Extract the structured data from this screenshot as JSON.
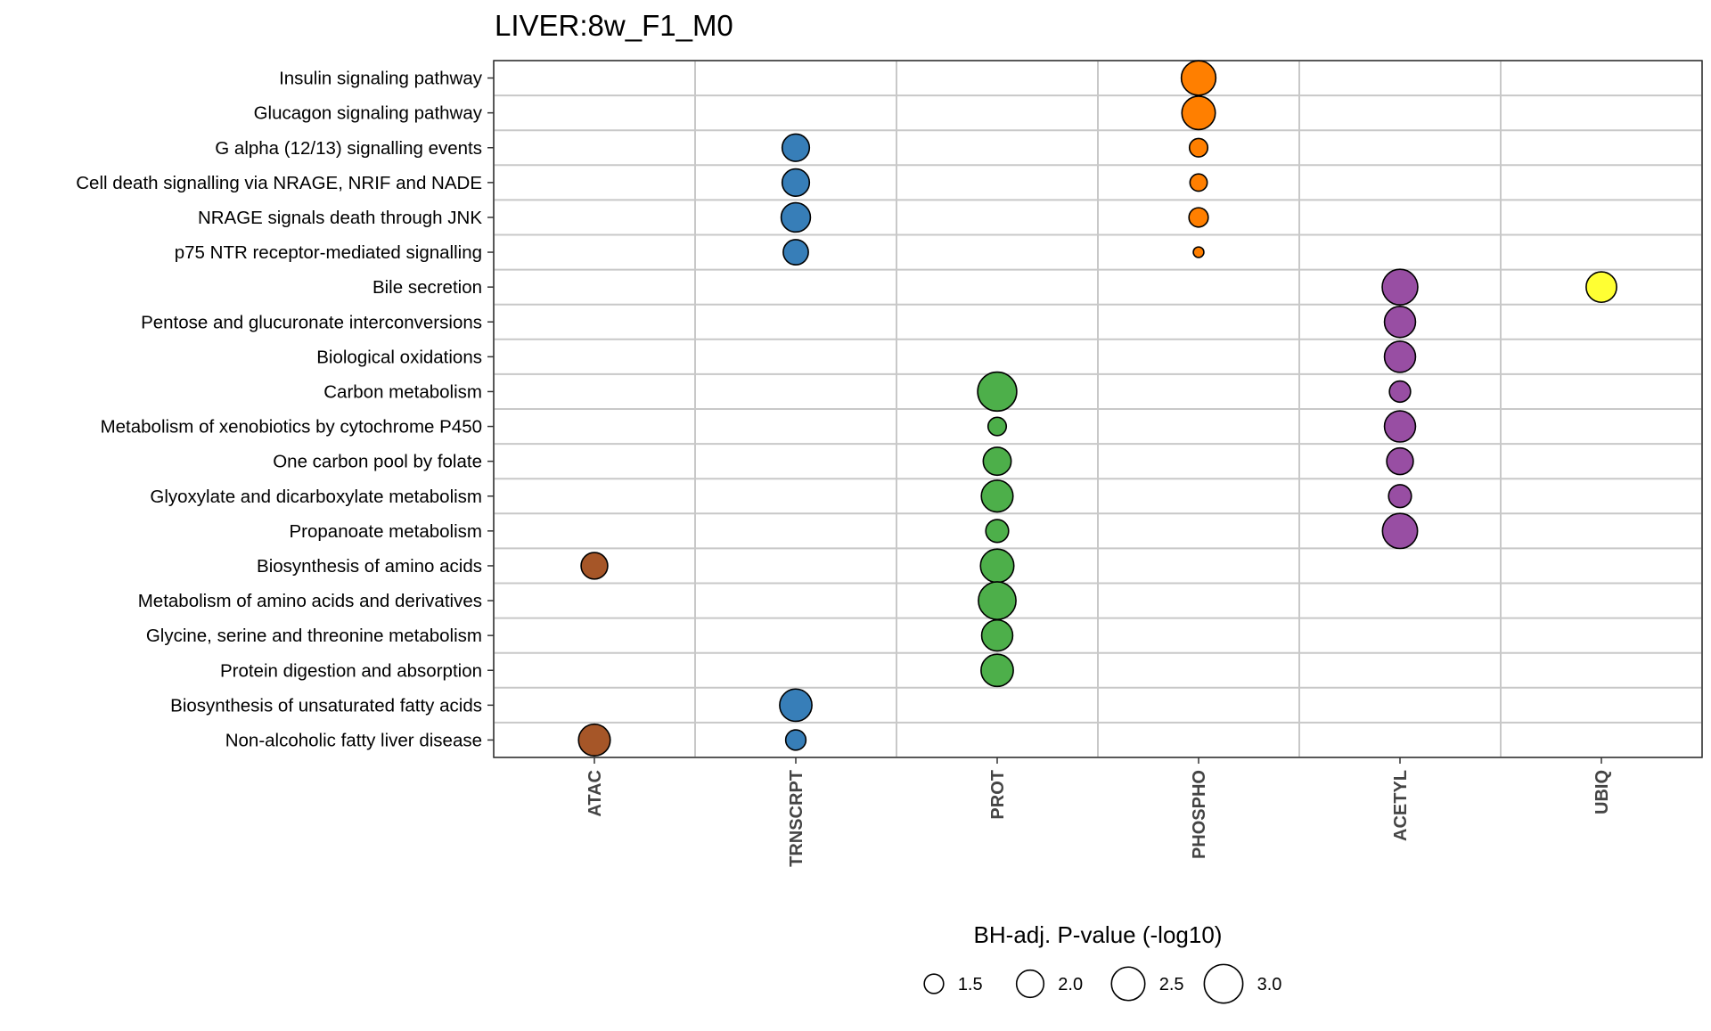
{
  "chart_data": {
    "type": "scatter",
    "title": "LIVER:8w_F1_M0",
    "categories": [
      "ATAC",
      "TRNSCRPT",
      "PROT",
      "PHOSPHO",
      "ACETYL",
      "UBIQ"
    ],
    "pathways": [
      "Insulin signaling pathway",
      "Glucagon signaling pathway",
      "G alpha (12/13) signalling events",
      "Cell death signalling via NRAGE, NRIF and NADE",
      "NRAGE signals death through JNK",
      "p75 NTR receptor-mediated signalling",
      "Bile secretion",
      "Pentose and glucuronate interconversions",
      "Biological oxidations",
      "Carbon metabolism",
      "Metabolism of xenobiotics by cytochrome P450",
      "One carbon pool by folate",
      "Glyoxylate and dicarboxylate metabolism",
      "Propanoate metabolism",
      "Biosynthesis of amino acids",
      "Metabolism of amino acids and derivatives",
      "Glycine, serine and threonine metabolism",
      "Protein digestion and absorption",
      "Biosynthesis of unsaturated fatty acids",
      "Non-alcoholic fatty liver disease"
    ],
    "colors": {
      "ATAC": "#a65628",
      "TRNSCRPT": "#377eb8",
      "PROT": "#4daf4a",
      "PHOSPHO": "#ff7f00",
      "ACETYL": "#984ea3",
      "UBIQ": "#ffff33"
    },
    "points": [
      {
        "pathway": "Insulin signaling pathway",
        "category": "PHOSPHO",
        "value": 2.6
      },
      {
        "pathway": "Glucagon signaling pathway",
        "category": "PHOSPHO",
        "value": 2.5
      },
      {
        "pathway": "G alpha (12/13) signalling events",
        "category": "TRNSCRPT",
        "value": 2.0
      },
      {
        "pathway": "G alpha (12/13) signalling events",
        "category": "PHOSPHO",
        "value": 1.45
      },
      {
        "pathway": "Cell death signalling via NRAGE, NRIF and NADE",
        "category": "TRNSCRPT",
        "value": 2.0
      },
      {
        "pathway": "Cell death signalling via NRAGE, NRIF and NADE",
        "category": "PHOSPHO",
        "value": 1.4
      },
      {
        "pathway": "NRAGE signals death through JNK",
        "category": "TRNSCRPT",
        "value": 2.15
      },
      {
        "pathway": "NRAGE signals death through JNK",
        "category": "PHOSPHO",
        "value": 1.5
      },
      {
        "pathway": "p75 NTR receptor-mediated signalling",
        "category": "TRNSCRPT",
        "value": 1.85
      },
      {
        "pathway": "p75 NTR receptor-mediated signalling",
        "category": "PHOSPHO",
        "value": 1.15
      },
      {
        "pathway": "Bile secretion",
        "category": "ACETYL",
        "value": 2.7
      },
      {
        "pathway": "Bile secretion",
        "category": "UBIQ",
        "value": 2.25
      },
      {
        "pathway": "Pentose and glucuronate interconversions",
        "category": "ACETYL",
        "value": 2.3
      },
      {
        "pathway": "Biological oxidations",
        "category": "ACETYL",
        "value": 2.3
      },
      {
        "pathway": "Carbon metabolism",
        "category": "PROT",
        "value": 3.05
      },
      {
        "pathway": "Carbon metabolism",
        "category": "ACETYL",
        "value": 1.6
      },
      {
        "pathway": "Metabolism of xenobiotics by cytochrome P450",
        "category": "PROT",
        "value": 1.45
      },
      {
        "pathway": "Metabolism of xenobiotics by cytochrome P450",
        "category": "ACETYL",
        "value": 2.3
      },
      {
        "pathway": "One carbon pool by folate",
        "category": "PROT",
        "value": 2.05
      },
      {
        "pathway": "One carbon pool by folate",
        "category": "ACETYL",
        "value": 1.95
      },
      {
        "pathway": "Glyoxylate and dicarboxylate metabolism",
        "category": "PROT",
        "value": 2.35
      },
      {
        "pathway": "Glyoxylate and dicarboxylate metabolism",
        "category": "ACETYL",
        "value": 1.7
      },
      {
        "pathway": "Propanoate metabolism",
        "category": "PROT",
        "value": 1.7
      },
      {
        "pathway": "Propanoate metabolism",
        "category": "ACETYL",
        "value": 2.65
      },
      {
        "pathway": "Biosynthesis of amino acids",
        "category": "PROT",
        "value": 2.5
      },
      {
        "pathway": "Biosynthesis of amino acids",
        "category": "ATAC",
        "value": 1.95
      },
      {
        "pathway": "Metabolism of amino acids and derivatives",
        "category": "PROT",
        "value": 2.9
      },
      {
        "pathway": "Glycine, serine and threonine metabolism",
        "category": "PROT",
        "value": 2.3
      },
      {
        "pathway": "Protein digestion and absorption",
        "category": "PROT",
        "value": 2.4
      },
      {
        "pathway": "Biosynthesis of unsaturated fatty acids",
        "category": "TRNSCRPT",
        "value": 2.4
      },
      {
        "pathway": "Non-alcoholic fatty liver disease",
        "category": "ATAC",
        "value": 2.35
      },
      {
        "pathway": "Non-alcoholic fatty liver disease",
        "category": "TRNSCRPT",
        "value": 1.55
      }
    ],
    "legend": {
      "title": "BH-adj. P-value (-log10)",
      "position": "bottom",
      "values": [
        1.5,
        2.0,
        2.5,
        3.0
      ],
      "labels": [
        "1.5",
        "2.0",
        "2.5",
        "3.0"
      ]
    },
    "grid": true
  }
}
